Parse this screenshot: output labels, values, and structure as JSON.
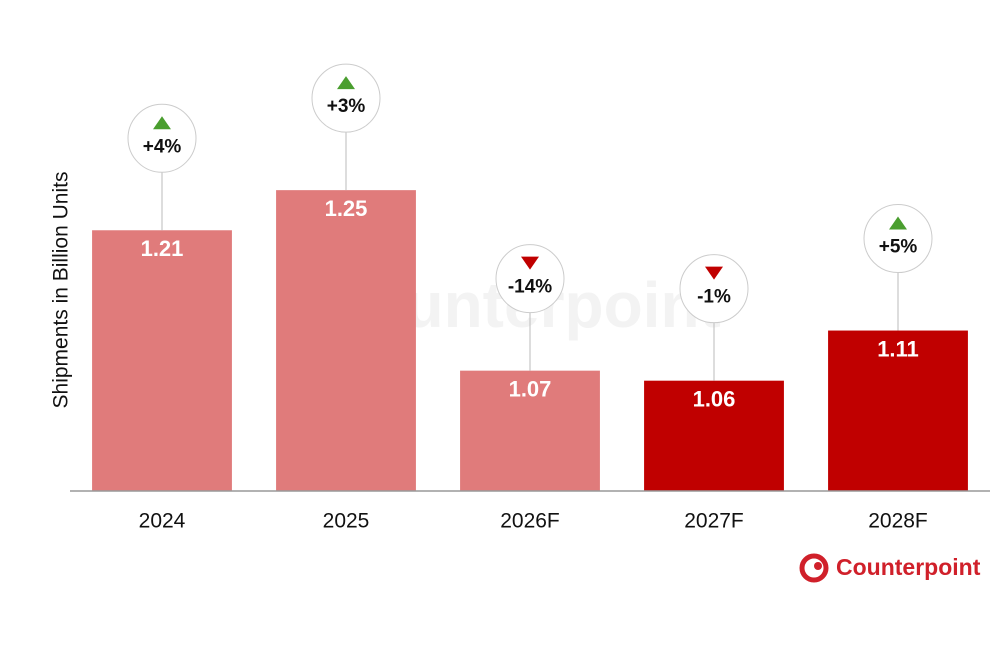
{
  "chart_data": {
    "type": "bar",
    "y_axis_label": "Shipments in Billion Units",
    "categories": [
      "2024",
      "2025",
      "2026F",
      "2027F",
      "2028F"
    ],
    "values": [
      1.21,
      1.25,
      1.07,
      1.06,
      1.11
    ],
    "colors": [
      "#e07b7b",
      "#e07b7b",
      "#e07b7b",
      "#c00000",
      "#c00000"
    ],
    "growth_labels": [
      "+4%",
      "+3%",
      "-14%",
      "-1%",
      "+5%"
    ],
    "growth_directions": [
      "up",
      "up",
      "down",
      "down",
      "up"
    ],
    "ylim": [
      0.95,
      1.3
    ],
    "brand": "Counterpoint"
  }
}
